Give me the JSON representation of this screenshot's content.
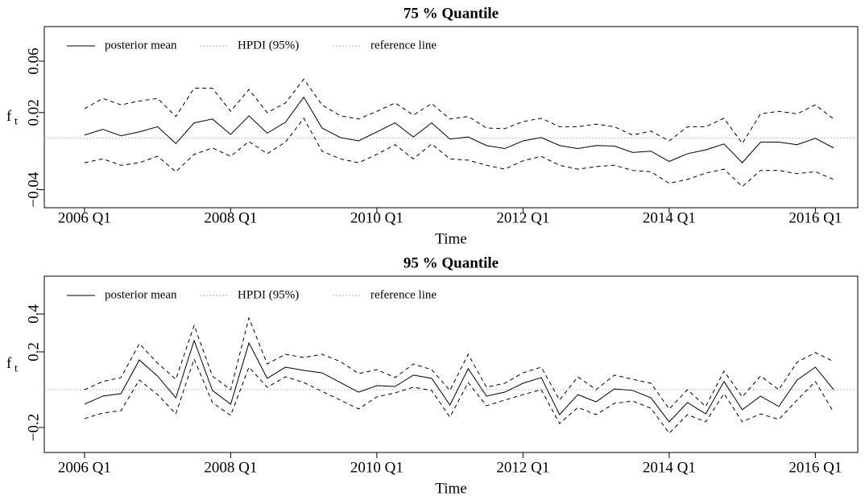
{
  "chart_data": [
    {
      "type": "line",
      "title": "75 % Quantile",
      "x_label": "Time",
      "y_label": "f",
      "y_label_sub": "t",
      "x": [
        2006,
        2006.25,
        2006.5,
        2006.75,
        2007,
        2007.25,
        2007.5,
        2007.75,
        2008,
        2008.25,
        2008.5,
        2008.75,
        2009,
        2009.25,
        2009.5,
        2009.75,
        2010,
        2010.25,
        2010.5,
        2010.75,
        2011,
        2011.25,
        2011.5,
        2011.75,
        2012,
        2012.25,
        2012.5,
        2012.75,
        2013,
        2013.25,
        2013.5,
        2013.75,
        2014,
        2014.25,
        2014.5,
        2014.75,
        2015,
        2015.25,
        2015.5,
        2015.75,
        2016,
        2016.25
      ],
      "xlim": [
        2005.45,
        2016.58
      ],
      "ylim": [
        -0.054,
        0.0869
      ],
      "xticks": [
        {
          "value": 2006,
          "label": "2006 Q1"
        },
        {
          "value": 2008,
          "label": "2008 Q1"
        },
        {
          "value": 2010,
          "label": "2010 Q1"
        },
        {
          "value": 2012,
          "label": "2012 Q1"
        },
        {
          "value": 2014,
          "label": "2014 Q1"
        },
        {
          "value": 2016,
          "label": "2016 Q1"
        }
      ],
      "yticks": [
        {
          "value": -0.04,
          "label": "−0.04"
        },
        0.02,
        0.06
      ],
      "series": [
        {
          "name": "posterior mean",
          "color": "#000000",
          "dash": "solid",
          "values": [
            0.0025,
            0.007,
            0.002,
            0.005,
            0.009,
            -0.004,
            0.012,
            0.015,
            0.003,
            0.0175,
            0.004,
            0.0125,
            0.032,
            0.008,
            0.0006,
            -0.002,
            0.005,
            0.012,
            0.001,
            0.012,
            -0.0006,
            0.001,
            -0.0056,
            -0.008,
            -0.002,
            0.0006,
            -0.0056,
            -0.008,
            -0.0056,
            -0.006,
            -0.011,
            -0.01,
            -0.018,
            -0.012,
            -0.009,
            -0.0044,
            -0.019,
            -0.003,
            -0.003,
            -0.005,
            0,
            -0.0075
          ]
        },
        {
          "name": "HPDI (95%)",
          "color": "#000000",
          "legend_color": "#aaaaaa",
          "dash": "dashed",
          "upper": [
            0.023,
            0.031,
            0.026,
            0.029,
            0.031,
            0.017,
            0.039,
            0.039,
            0.021,
            0.038,
            0.02,
            0.0275,
            0.046,
            0.026,
            0.0175,
            0.015,
            0.021,
            0.0275,
            0.018,
            0.027,
            0.015,
            0.017,
            0.008,
            0.0075,
            0.013,
            0.0156,
            0.009,
            0.009,
            0.011,
            0.009,
            0.0025,
            0.0056,
            -0.002,
            0.009,
            0.009,
            0.0156,
            -0.004,
            0.019,
            0.021,
            0.019,
            0.026,
            0.015
          ],
          "lower": [
            -0.019,
            -0.016,
            -0.021,
            -0.019,
            -0.014,
            -0.026,
            -0.0125,
            -0.0075,
            -0.014,
            -0.0025,
            -0.012,
            -0.003,
            0.0156,
            -0.01,
            -0.016,
            -0.019,
            -0.0125,
            -0.005,
            -0.016,
            -0.0044,
            -0.016,
            -0.017,
            -0.021,
            -0.024,
            -0.0175,
            -0.014,
            -0.021,
            -0.024,
            -0.022,
            -0.021,
            -0.025,
            -0.026,
            -0.035,
            -0.032,
            -0.027,
            -0.024,
            -0.0375,
            -0.025,
            -0.025,
            -0.0275,
            -0.026,
            -0.032
          ]
        }
      ],
      "reference_line": {
        "name": "reference line",
        "value": 0,
        "color": "#bbbbbb"
      }
    },
    {
      "type": "line",
      "title": "95 % Quantile",
      "x_label": "Time",
      "y_label": "f",
      "y_label_sub": "t",
      "x": [
        2006,
        2006.25,
        2006.5,
        2006.75,
        2007,
        2007.25,
        2007.5,
        2007.75,
        2008,
        2008.25,
        2008.5,
        2008.75,
        2009,
        2009.25,
        2009.5,
        2009.75,
        2010,
        2010.25,
        2010.5,
        2010.75,
        2011,
        2011.25,
        2011.5,
        2011.75,
        2012,
        2012.25,
        2012.5,
        2012.75,
        2013,
        2013.25,
        2013.5,
        2013.75,
        2014,
        2014.25,
        2014.5,
        2014.75,
        2015,
        2015.25,
        2015.5,
        2015.75,
        2016,
        2016.25
      ],
      "xlim": [
        2005.45,
        2016.58
      ],
      "ylim": [
        -0.332,
        0.6
      ],
      "xticks": [
        {
          "value": 2006,
          "label": "2006 Q1"
        },
        {
          "value": 2008,
          "label": "2008 Q1"
        },
        {
          "value": 2010,
          "label": "2010 Q1"
        },
        {
          "value": 2012,
          "label": "2012 Q1"
        },
        {
          "value": 2014,
          "label": "2014 Q1"
        },
        {
          "value": 2016,
          "label": "2016 Q1"
        }
      ],
      "yticks": [
        {
          "value": -0.2,
          "label": "−0.2"
        },
        0.2,
        0.4
      ],
      "series": [
        {
          "name": "posterior mean",
          "color": "#000000",
          "dash": "solid",
          "values": [
            -0.077,
            -0.034,
            -0.021,
            0.157,
            0.072,
            -0.043,
            0.26,
            -0.004,
            -0.077,
            0.247,
            0.06,
            0.119,
            0.102,
            0.089,
            0.038,
            -0.013,
            0.021,
            0.017,
            0.077,
            0.06,
            -0.081,
            0.111,
            -0.034,
            -0.013,
            0.034,
            0.064,
            -0.132,
            -0.026,
            -0.064,
            0.004,
            -0.004,
            -0.043,
            -0.17,
            -0.068,
            -0.128,
            0.043,
            -0.106,
            -0.034,
            -0.089,
            0.051,
            0.119,
            0
          ]
        },
        {
          "name": "HPDI (95%)",
          "color": "#000000",
          "legend_color": "#aaaaaa",
          "dash": "dashed",
          "upper": [
            0,
            0.043,
            0.064,
            0.243,
            0.14,
            0.055,
            0.34,
            0.072,
            0,
            0.379,
            0.136,
            0.187,
            0.17,
            0.187,
            0.149,
            0.085,
            0.106,
            0.064,
            0.136,
            0.106,
            -0.004,
            0.187,
            0.013,
            0.034,
            0.089,
            0.119,
            -0.055,
            0.068,
            0,
            0.077,
            0.055,
            0.034,
            -0.102,
            0,
            -0.089,
            0.098,
            -0.038,
            0.072,
            0,
            0.145,
            0.196,
            0.149
          ],
          "lower": [
            -0.153,
            -0.123,
            -0.111,
            0.051,
            -0.026,
            -0.128,
            0.162,
            -0.068,
            -0.136,
            0.119,
            0.013,
            0.068,
            0.038,
            -0.009,
            -0.055,
            -0.102,
            -0.038,
            -0.017,
            0.013,
            -0.004,
            -0.145,
            0.038,
            -0.085,
            -0.055,
            -0.026,
            0,
            -0.179,
            -0.094,
            -0.132,
            -0.072,
            -0.06,
            -0.098,
            -0.23,
            -0.132,
            -0.17,
            -0.021,
            -0.17,
            -0.128,
            -0.157,
            -0.055,
            0.043,
            -0.119
          ]
        }
      ],
      "reference_line": {
        "name": "reference line",
        "value": 0,
        "color": "#bbbbbb"
      }
    }
  ]
}
